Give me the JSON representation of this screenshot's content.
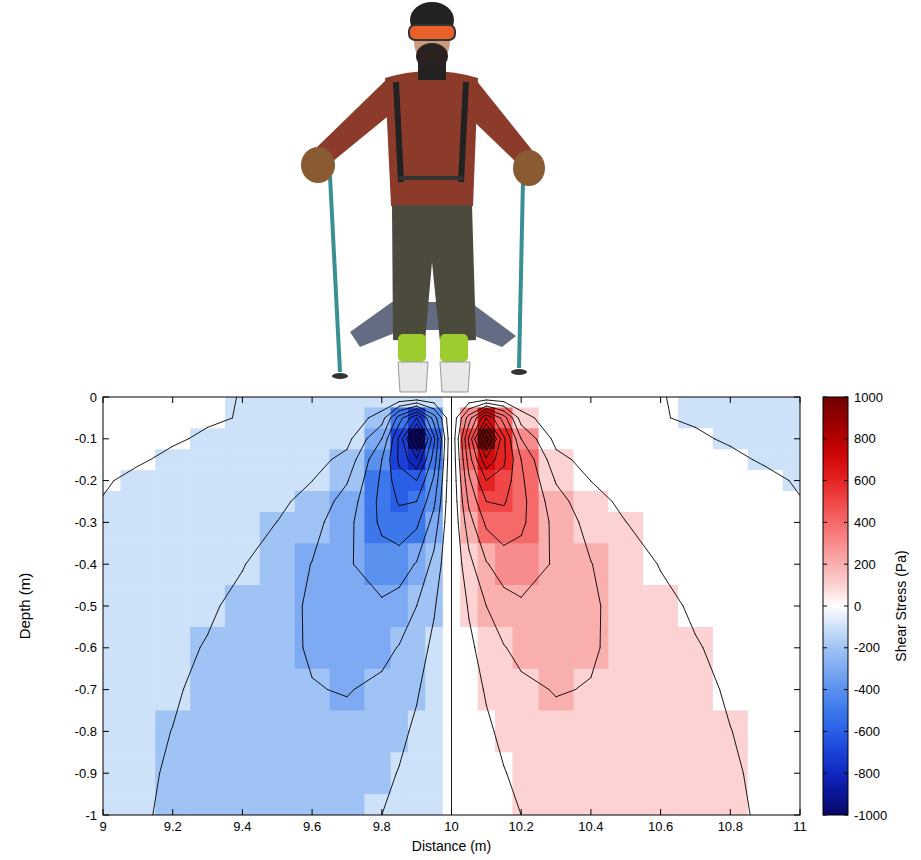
{
  "chart_data": {
    "type": "contour",
    "xlabel": "Distance (m)",
    "ylabel": "Depth (m)",
    "colorbar_label": "Shear Stress (Pa)",
    "x": [
      9,
      9.1,
      9.2,
      9.3,
      9.4,
      9.5,
      9.6,
      9.7,
      9.8,
      9.85,
      9.9,
      9.95,
      10,
      10.05,
      10.1,
      10.15,
      10.2,
      10.3,
      10.4,
      10.5,
      10.6,
      10.7,
      10.8,
      10.9,
      11
    ],
    "y": [
      0,
      -0.05,
      -0.1,
      -0.15,
      -0.2,
      -0.25,
      -0.3,
      -0.4,
      -0.5,
      -0.6,
      -0.7,
      -0.8,
      -0.9,
      -1
    ],
    "values": [
      [
        20,
        15,
        10,
        5,
        -1,
        -1,
        -1,
        -1,
        -1,
        -1,
        -1,
        -1,
        0,
        1,
        1,
        1,
        1,
        1,
        1,
        1,
        1,
        -5,
        -10,
        -15,
        -20
      ],
      [
        20,
        15,
        10,
        5,
        -2,
        -4,
        -8,
        -19,
        -150,
        -450,
        -700,
        -350,
        0,
        350,
        700,
        450,
        150,
        19,
        8,
        4,
        2,
        -5,
        -10,
        -15,
        -20
      ],
      [
        15,
        10,
        5,
        -6,
        -9,
        -16,
        -30,
        -68,
        -300,
        -620,
        -1050,
        -520,
        0,
        520,
        1050,
        620,
        300,
        68,
        30,
        16,
        9,
        6,
        -5,
        -10,
        -15
      ],
      [
        10,
        5,
        -9,
        -13,
        -20,
        -34,
        -62,
        -131,
        -400,
        -620,
        -780,
        -450,
        0,
        450,
        780,
        620,
        400,
        131,
        62,
        34,
        20,
        13,
        9,
        -5,
        -10
      ],
      [
        5,
        -11,
        -15,
        -22,
        -34,
        -56,
        -99,
        -192,
        -420,
        -560,
        -600,
        -380,
        0,
        380,
        600,
        560,
        420,
        192,
        99,
        56,
        34,
        22,
        15,
        11,
        -5
      ],
      [
        -2,
        -16,
        -23,
        -33,
        -50,
        -79,
        -133,
        -240,
        -430,
        -510,
        -500,
        -320,
        0,
        320,
        500,
        510,
        430,
        240,
        133,
        79,
        50,
        33,
        23,
        16,
        2
      ],
      [
        -8,
        -23,
        -31,
        -44,
        -66,
        -101,
        -163,
        -270,
        -420,
        -460,
        -420,
        -260,
        0,
        260,
        420,
        460,
        420,
        270,
        163,
        101,
        66,
        44,
        31,
        23,
        8
      ],
      [
        -20,
        -37,
        -49,
        -68,
        -96,
        -139,
        -203,
        -287,
        -357,
        -351,
        -292,
        -169,
        0,
        169,
        292,
        351,
        357,
        287,
        203,
        139,
        96,
        68,
        49,
        37,
        20
      ],
      [
        -39,
        -51,
        -67,
        -89,
        -120,
        -162,
        -215,
        -269,
        -285,
        -259,
        -200,
        -110,
        0,
        110,
        200,
        259,
        285,
        269,
        215,
        162,
        120,
        89,
        67,
        51,
        39
      ],
      [
        -51,
        -64,
        -82,
        -105,
        -135,
        -172,
        -210,
        -238,
        -226,
        -195,
        -145,
        -77,
        0,
        77,
        145,
        195,
        226,
        238,
        210,
        172,
        135,
        105,
        82,
        64,
        51
      ],
      [
        -61,
        -75,
        -93,
        -116,
        -142,
        -171,
        -196,
        -205,
        -180,
        -151,
        -109,
        -57,
        0,
        57,
        109,
        151,
        180,
        205,
        196,
        171,
        142,
        116,
        93,
        75,
        61
      ],
      [
        -69,
        -84,
        -101,
        -122,
        -144,
        -164,
        -178,
        -176,
        -146,
        -119,
        -85,
        -44,
        0,
        44,
        85,
        119,
        146,
        176,
        178,
        164,
        144,
        122,
        101,
        84,
        69
      ],
      [
        -76,
        -90,
        -106,
        -123,
        -140,
        -154,
        -160,
        -151,
        -120,
        -96,
        -68,
        -35,
        0,
        35,
        68,
        96,
        120,
        151,
        160,
        154,
        140,
        123,
        106,
        90,
        76
      ],
      [
        -81,
        -94,
        -108,
        -122,
        -134,
        -143,
        -143,
        -129,
        -100,
        -79,
        -55,
        -28,
        0,
        28,
        55,
        79,
        100,
        129,
        143,
        143,
        134,
        122,
        108,
        94,
        81
      ]
    ],
    "levels": [
      -1000,
      -900,
      -800,
      -700,
      -600,
      -500,
      -400,
      -300,
      -200,
      -100,
      0,
      100,
      200,
      300,
      400,
      500,
      600,
      700,
      800,
      900,
      1000
    ],
    "xlim": [
      9,
      11
    ],
    "ylim": [
      -1,
      0
    ],
    "xticks": [
      9,
      9.2,
      9.4,
      9.6,
      9.8,
      10,
      10.2,
      10.4,
      10.6,
      10.8,
      11
    ],
    "yticks": [
      0,
      -0.1,
      -0.2,
      -0.3,
      -0.4,
      -0.5,
      -0.6,
      -0.7,
      -0.8,
      -0.9,
      -1
    ],
    "clim": [
      -1000,
      1000
    ],
    "cticks": [
      -1000,
      -800,
      -600,
      -400,
      -200,
      0,
      200,
      400,
      600,
      800,
      1000
    ]
  }
}
